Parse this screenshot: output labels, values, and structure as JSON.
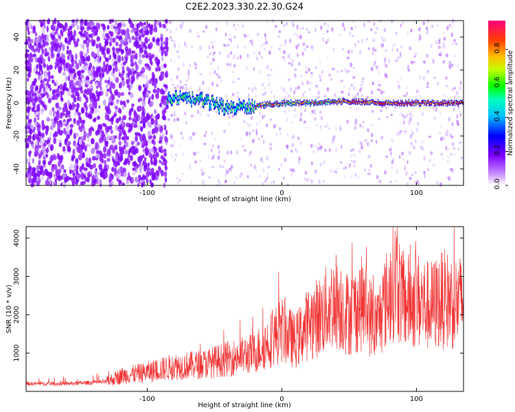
{
  "title": "C2E2.2023.330.22.30.G24",
  "colors": {
    "snr_line": "#f03030",
    "colormap": [
      "#ffffff",
      "#8000ff",
      "#0000ff",
      "#00ffff",
      "#00ff00",
      "#ffff00",
      "#ff8000",
      "#ff0000",
      "#ff00ff"
    ]
  },
  "chart_data": [
    {
      "type": "heatmap",
      "xlabel": "Height of straight line (km)",
      "ylabel": "Frequency (Hz)",
      "xlim": [
        -190,
        135
      ],
      "ylim": [
        -50,
        50
      ],
      "x_ticks": [
        -100,
        0,
        100
      ],
      "y_ticks": [
        40,
        20,
        0,
        -20,
        -40
      ],
      "colorbar": {
        "label": "Normalized spectral amplitude",
        "range": [
          0.0,
          0.97
        ],
        "ticks": [
          0.0,
          0.2,
          0.4,
          0.6,
          0.8
        ]
      },
      "ridge": {
        "description": "dominant signal near 0 Hz",
        "points": [
          {
            "x": -85,
            "y": 3
          },
          {
            "x": -60,
            "y": 2
          },
          {
            "x": -40,
            "y": -3
          },
          {
            "x": -20,
            "y": -2
          },
          {
            "x": 0,
            "y": 0
          },
          {
            "x": 20,
            "y": 0
          },
          {
            "x": 45,
            "y": 1
          },
          {
            "x": 80,
            "y": 0
          },
          {
            "x": 135,
            "y": 0
          }
        ]
      }
    },
    {
      "type": "line",
      "xlabel": "Height of straight line (km)",
      "ylabel": "SNR (10 * v/v)",
      "xlim": [
        -190,
        135
      ],
      "ylim": [
        0,
        4300
      ],
      "x_ticks": [
        -100,
        0,
        100
      ],
      "y_ticks": [
        1000,
        2000,
        3000,
        4000
      ],
      "series": [
        {
          "x": [
            -190,
            -160,
            -130,
            -120,
            -100,
            -80,
            -60,
            -40,
            -20,
            0,
            10,
            20,
            30,
            40,
            50,
            60,
            70,
            80,
            85,
            90,
            100,
            110,
            120,
            135
          ],
          "y": [
            200,
            200,
            250,
            400,
            500,
            650,
            700,
            850,
            1000,
            1600,
            1300,
            1800,
            2000,
            2400,
            2000,
            2300,
            1700,
            2600,
            3000,
            2300,
            2400,
            2200,
            2400,
            2300
          ]
        }
      ]
    }
  ]
}
